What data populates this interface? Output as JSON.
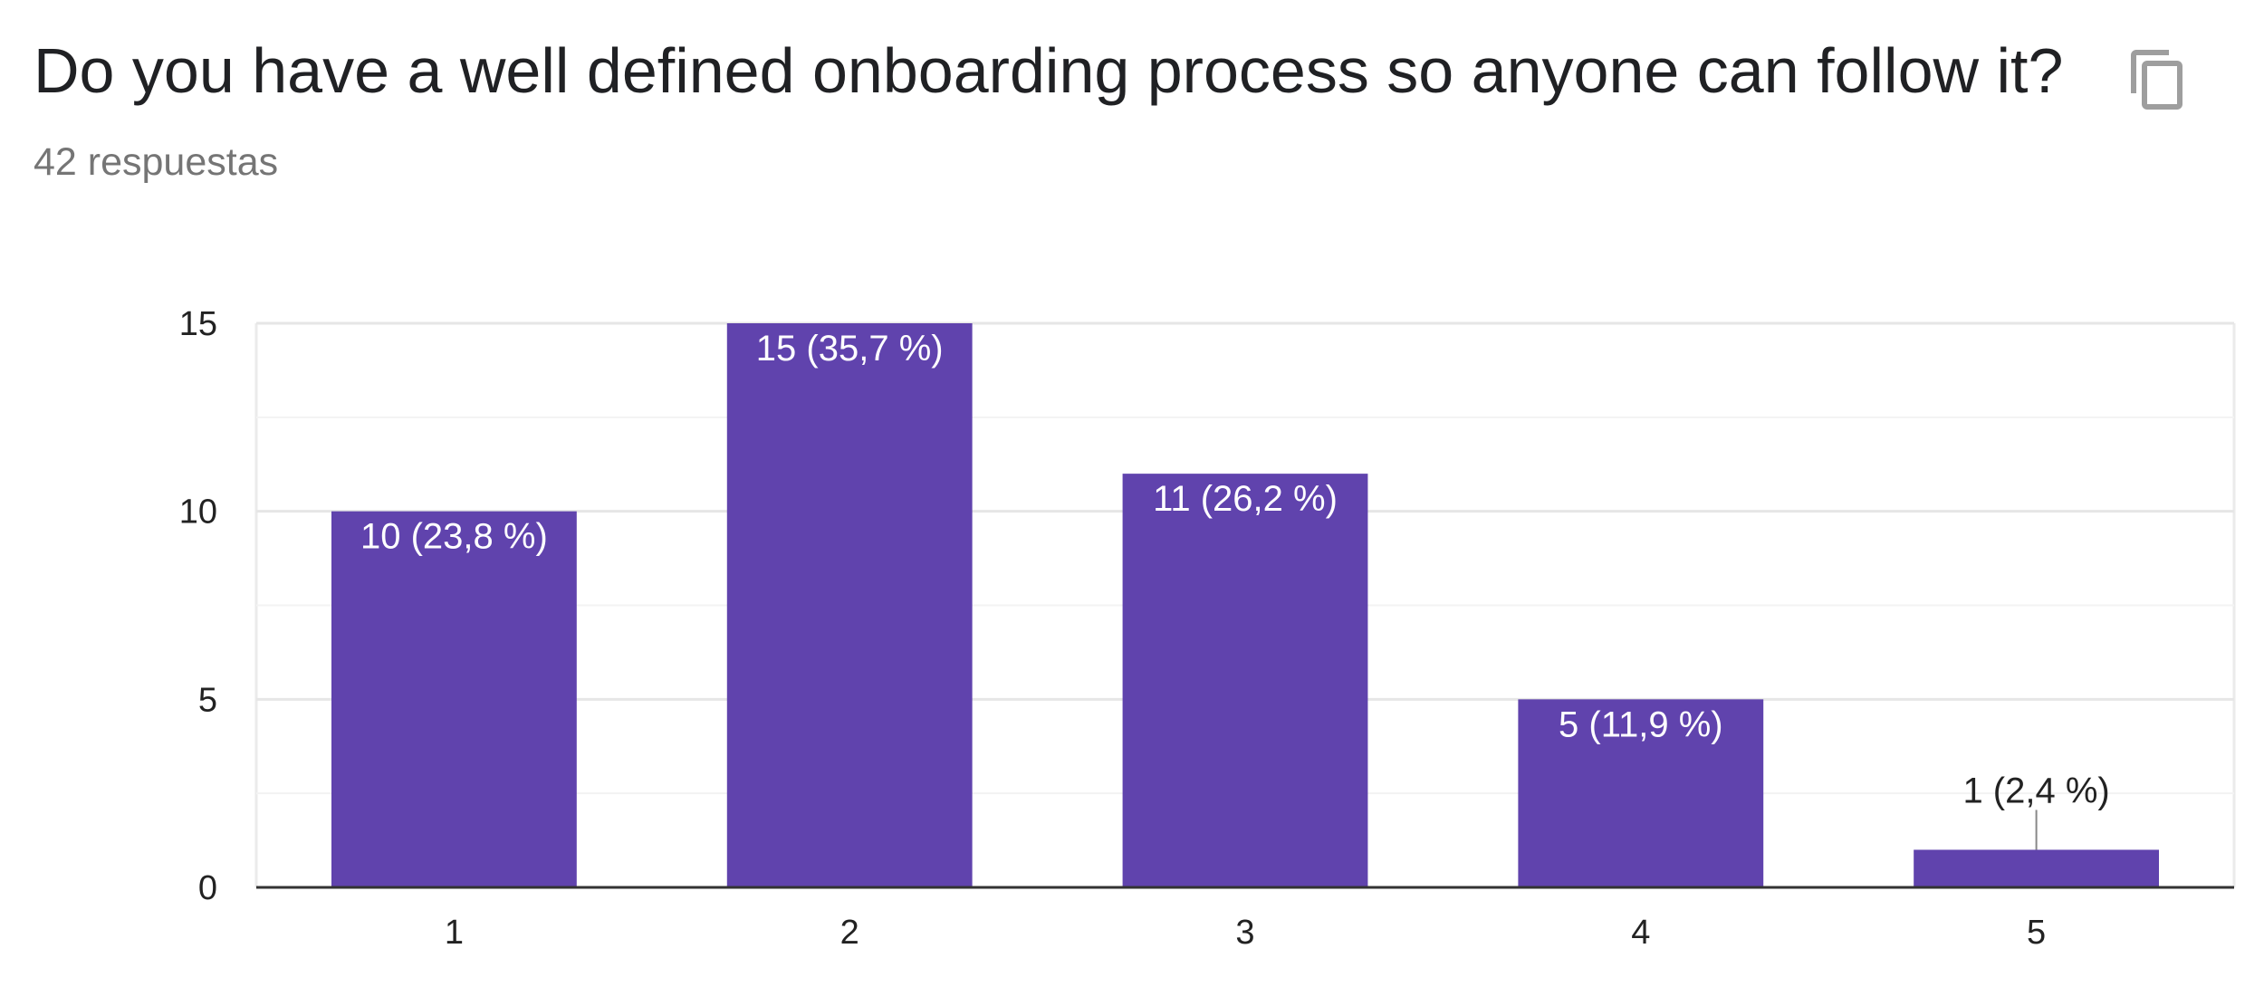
{
  "question": {
    "title": "Do you have a well defined onboarding process so anyone can follow it?",
    "response_count": "42 respuestas"
  },
  "copy_button": {
    "icon": "copy-icon"
  },
  "colors": {
    "bar": "#6043ad",
    "gridline": "#ebebeb",
    "axis": "#333333",
    "title": "#202124",
    "subtitle": "#757575",
    "icon": "#9e9e9e"
  },
  "chart_data": {
    "type": "bar",
    "title": "",
    "xlabel": "",
    "ylabel": "",
    "categories": [
      "1",
      "2",
      "3",
      "4",
      "5"
    ],
    "values": [
      10,
      15,
      11,
      5,
      1
    ],
    "data_labels": [
      "10 (23,8 %)",
      "15 (35,7 %)",
      "11 (26,2 %)",
      "5 (11,9 %)",
      "1 (2,4 %)"
    ],
    "ylim": [
      0,
      15
    ],
    "yticks": [
      "0",
      "5",
      "10",
      "15"
    ],
    "grid": true,
    "legend": "none"
  }
}
